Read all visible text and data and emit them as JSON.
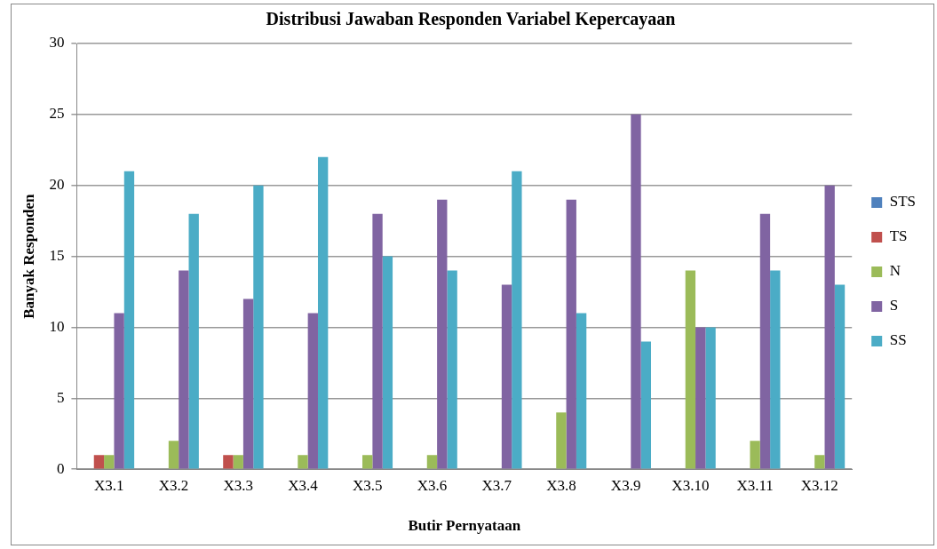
{
  "chart_data": {
    "type": "bar",
    "title": "Distribusi Jawaban Responden Variabel Kepercayaan",
    "xlabel": "Butir Pernyataan",
    "ylabel": "Banyak Responden",
    "categories": [
      "X3.1",
      "X3.2",
      "X3.3",
      "X3.4",
      "X3.5",
      "X3.6",
      "X3.7",
      "X3.8",
      "X3.9",
      "X3.10",
      "X3.11",
      "X3.12"
    ],
    "series": [
      {
        "name": "STS",
        "color": "#4f81bd",
        "values": [
          0,
          0,
          0,
          0,
          0,
          0,
          0,
          0,
          0,
          0,
          0,
          0
        ]
      },
      {
        "name": "TS",
        "color": "#c0504d",
        "values": [
          1,
          0,
          1,
          0,
          0,
          0,
          0,
          0,
          0,
          0,
          0,
          0
        ]
      },
      {
        "name": "N",
        "color": "#9bbb59",
        "values": [
          1,
          2,
          1,
          1,
          1,
          1,
          0,
          4,
          0,
          14,
          2,
          1
        ]
      },
      {
        "name": "S",
        "color": "#8064a2",
        "values": [
          11,
          14,
          12,
          11,
          18,
          19,
          13,
          19,
          25,
          10,
          18,
          20
        ]
      },
      {
        "name": "SS",
        "color": "#4bacc6",
        "values": [
          21,
          18,
          20,
          22,
          15,
          14,
          21,
          11,
          9,
          10,
          14,
          13
        ]
      }
    ],
    "ylim": [
      0,
      30
    ],
    "yticks": [
      0,
      5,
      10,
      15,
      20,
      25,
      30
    ],
    "grid": "y",
    "legend": "right"
  }
}
